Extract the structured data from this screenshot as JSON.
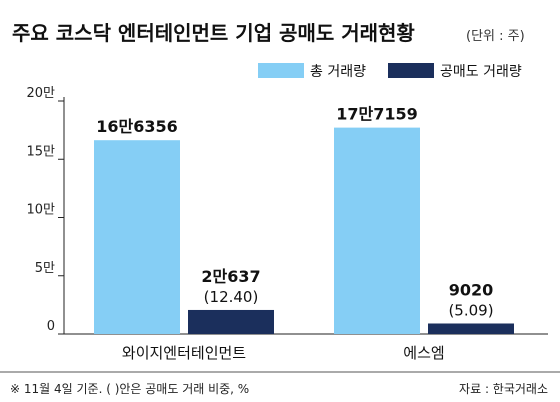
{
  "chart_data": {
    "type": "bar",
    "title": "주요 코스닥 엔터테인먼트 기업 공매도 거래현황",
    "unit": "(단위 : 주)",
    "categories": [
      "와이지엔터테인먼트",
      "에스엠"
    ],
    "series": [
      {
        "name": "총 거래량",
        "color": "#85cef5",
        "values": [
          166356,
          177159
        ],
        "labels": [
          "16만6356",
          "17만7159"
        ]
      },
      {
        "name": "공매도 거래량",
        "color": "#1b2f5c",
        "values": [
          20637,
          9020
        ],
        "labels": [
          "2만637",
          "9020"
        ],
        "sub_labels": [
          "(12.40)",
          "(5.09)"
        ]
      }
    ],
    "y_ticks": [
      {
        "value": 0,
        "label": "0"
      },
      {
        "value": 50000,
        "label": "5만"
      },
      {
        "value": 100000,
        "label": "10만"
      },
      {
        "value": 150000,
        "label": "15만"
      },
      {
        "value": 200000,
        "label": "20만"
      }
    ],
    "ylim": [
      0,
      200000
    ],
    "grid": false,
    "legend_position": "top-right",
    "footnote": "※ 11월 4일 기준. (    )안은 공매도 거래 비중, %",
    "source": "자료 : 한국거래소"
  }
}
